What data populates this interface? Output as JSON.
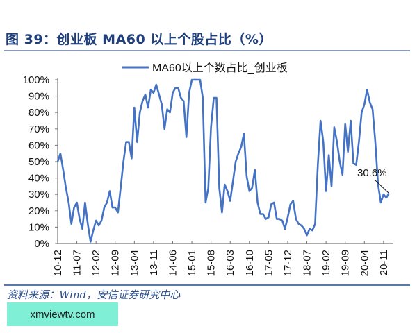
{
  "header": {
    "title": "图 39：创业板 MA60 以上个股占比（%）"
  },
  "footer": {
    "source": "资料来源：Wind，安信证券研究中心",
    "watermark": "xmviewtv.com"
  },
  "chart_data": {
    "type": "line",
    "title": "",
    "xlabel": "",
    "ylabel": "",
    "ylim": [
      0,
      100
    ],
    "grid": false,
    "legend_position": "top-center",
    "y_ticks": [
      "0%",
      "10%",
      "20%",
      "30%",
      "40%",
      "50%",
      "60%",
      "70%",
      "80%",
      "90%",
      "100%"
    ],
    "x_ticks": [
      "10-12",
      "11-07",
      "12-02",
      "12-09",
      "13-04",
      "13-11",
      "14-06",
      "15-01",
      "15-08",
      "16-03",
      "16-10",
      "17-05",
      "17-12",
      "18-07",
      "19-02",
      "19-09",
      "20-04",
      "20-11"
    ],
    "annotation": {
      "label": "30.6%",
      "value": 30.6
    },
    "series": [
      {
        "name": "MA60以上个数占比_创业板",
        "color": "#4472c4",
        "x": [
          "2010-12",
          "2011-01",
          "2011-02",
          "2011-03",
          "2011-04",
          "2011-05",
          "2011-06",
          "2011-07",
          "2011-08",
          "2011-09",
          "2011-10",
          "2011-11",
          "2011-12",
          "2012-01",
          "2012-02",
          "2012-03",
          "2012-04",
          "2012-05",
          "2012-06",
          "2012-07",
          "2012-08",
          "2012-09",
          "2012-10",
          "2012-11",
          "2012-12",
          "2013-01",
          "2013-02",
          "2013-03",
          "2013-04",
          "2013-05",
          "2013-06",
          "2013-07",
          "2013-08",
          "2013-09",
          "2013-10",
          "2013-11",
          "2013-12",
          "2014-01",
          "2014-02",
          "2014-03",
          "2014-04",
          "2014-05",
          "2014-06",
          "2014-07",
          "2014-08",
          "2014-09",
          "2014-10",
          "2014-11",
          "2014-12",
          "2015-01",
          "2015-02",
          "2015-03",
          "2015-04",
          "2015-05",
          "2015-06",
          "2015-07",
          "2015-08",
          "2015-09",
          "2015-10",
          "2015-11",
          "2015-12",
          "2016-01",
          "2016-02",
          "2016-03",
          "2016-04",
          "2016-05",
          "2016-06",
          "2016-07",
          "2016-08",
          "2016-09",
          "2016-10",
          "2016-11",
          "2016-12",
          "2017-01",
          "2017-02",
          "2017-03",
          "2017-04",
          "2017-05",
          "2017-06",
          "2017-07",
          "2017-08",
          "2017-09",
          "2017-10",
          "2017-11",
          "2017-12",
          "2018-01",
          "2018-02",
          "2018-03",
          "2018-04",
          "2018-05",
          "2018-06",
          "2018-07",
          "2018-08",
          "2018-09",
          "2018-10",
          "2018-11",
          "2018-12",
          "2019-01",
          "2019-02",
          "2019-03",
          "2019-04",
          "2019-05",
          "2019-06",
          "2019-07",
          "2019-08",
          "2019-09",
          "2019-10",
          "2019-11",
          "2019-12",
          "2020-01",
          "2020-02",
          "2020-03",
          "2020-04",
          "2020-05",
          "2020-06",
          "2020-07",
          "2020-08",
          "2020-09",
          "2020-10",
          "2020-11",
          "2020-12",
          "2021-01"
        ],
        "values": [
          50,
          55,
          45,
          34,
          25,
          12,
          22,
          25,
          15,
          9,
          25,
          12,
          1,
          8,
          14,
          11,
          14,
          22,
          25,
          32,
          22,
          22,
          19,
          34,
          50,
          62,
          62,
          52,
          83,
          62,
          80,
          87,
          91,
          83,
          94,
          92,
          97,
          91,
          85,
          70,
          82,
          80,
          92,
          95,
          95,
          89,
          87,
          65,
          92,
          100,
          100,
          100,
          100,
          89,
          25,
          34,
          71,
          89,
          89,
          34,
          19,
          36,
          32,
          26,
          38,
          50,
          55,
          59,
          67,
          41,
          32,
          34,
          45,
          25,
          18,
          18,
          15,
          16,
          24,
          25,
          15,
          15,
          14,
          9,
          16,
          24,
          26,
          15,
          12,
          11,
          9,
          5,
          9,
          8,
          12,
          48,
          75,
          62,
          32,
          54,
          35,
          71,
          62,
          50,
          42,
          73,
          56,
          75,
          49,
          48,
          62,
          80,
          85,
          94,
          86,
          82,
          62,
          36,
          25,
          30,
          28,
          30.6
        ]
      }
    ]
  }
}
